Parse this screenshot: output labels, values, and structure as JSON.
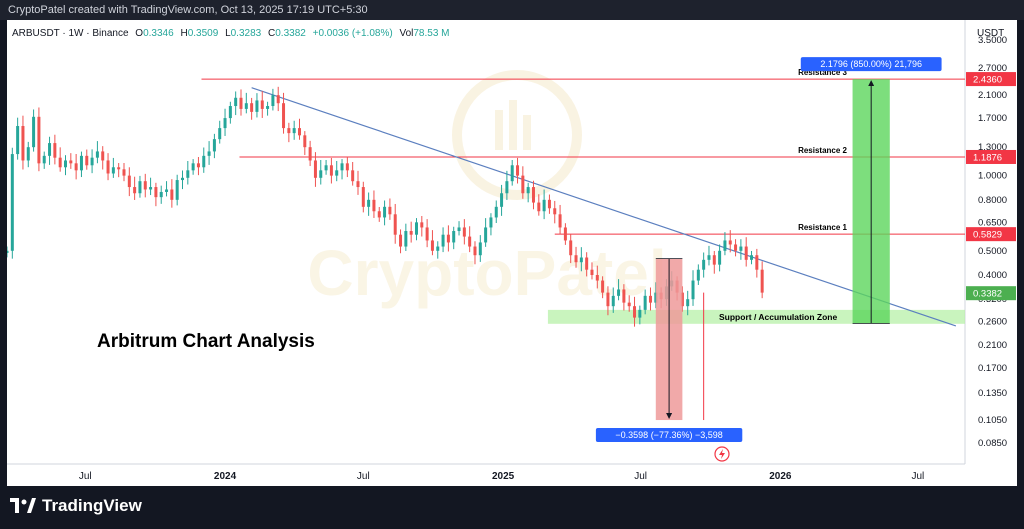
{
  "header": {
    "credit": "CryptoPatel created with TradingView.com, Oct 13, 2025 17:19 UTC+5:30"
  },
  "legend": {
    "symbol": "ARBUSDT · 1W · Binance",
    "o_label": "O",
    "o_value": "0.3346",
    "h_label": "H",
    "h_value": "0.3509",
    "l_label": "L",
    "l_value": "0.3283",
    "c_label": "C",
    "c_value": "0.3382",
    "change": "+0.0036 (+1.08%)",
    "vol_label": "Vol",
    "vol_value": "78.53 M"
  },
  "footer": {
    "brand": "TradingView"
  },
  "colors": {
    "up": "#26a69a",
    "down": "#ef5350",
    "resistance": "#f23645",
    "trendline": "#5b7fbf",
    "zone": "#b7f0a8"
  },
  "chart_data": {
    "type": "candlestick",
    "title": "Arbitrum Chart Analysis",
    "currency": "USDT",
    "yscale": "log",
    "ylim": [
      0.07,
      4.2
    ],
    "x_range": [
      "2023-03-20",
      "2026-09-01"
    ],
    "y_ticks": [
      3.5,
      2.7,
      2.1,
      1.7,
      1.3,
      1.0,
      0.8,
      0.65,
      0.5,
      0.4,
      0.32,
      0.26,
      0.21,
      0.17,
      0.135,
      0.105,
      0.085
    ],
    "y_tick_labels": [
      "3.5000",
      "2.7000",
      "2.1000",
      "1.7000",
      "1.3000",
      "1.0000",
      "0.8000",
      "0.6500",
      "0.5000",
      "0.4000",
      "0.3200",
      "0.2600",
      "0.2100",
      "0.1700",
      "0.1350",
      "0.1050",
      "0.0850"
    ],
    "x_ticks": [
      {
        "date": "2023-07-01",
        "label": "Jul",
        "bold": false
      },
      {
        "date": "2024-01-01",
        "label": "2024",
        "bold": true
      },
      {
        "date": "2024-07-01",
        "label": "Jul",
        "bold": false
      },
      {
        "date": "2025-01-01",
        "label": "2025",
        "bold": true
      },
      {
        "date": "2025-07-01",
        "label": "Jul",
        "bold": false
      },
      {
        "date": "2026-01-01",
        "label": "2026",
        "bold": true
      },
      {
        "date": "2026-07-01",
        "label": "Jul",
        "bold": false
      }
    ],
    "price_levels": [
      {
        "name": "Resistance 3",
        "value": 2.436,
        "label": "2.4360",
        "color": "#f23645"
      },
      {
        "name": "Resistance 2",
        "value": 1.1876,
        "label": "1.1876",
        "color": "#f23645"
      },
      {
        "name": "Resistance 1",
        "value": 0.5829,
        "label": "0.5829",
        "color": "#f23645"
      }
    ],
    "current_price": {
      "value": 0.3382,
      "label": "0.3382",
      "color": "#4caf50"
    },
    "zone": {
      "name": "Support / Accumulation Zone",
      "low": 0.255,
      "high": 0.29,
      "start": "2025-03-01",
      "end": "2026-09-01"
    },
    "trendline": {
      "start": {
        "date": "2024-02-05",
        "value": 2.25
      },
      "end": {
        "date": "2026-08-20",
        "value": 0.25
      }
    },
    "measures": [
      {
        "label": "2.1796 (850.00%) 21,796",
        "from": 0.256,
        "to": 2.436,
        "start": "2026-04-06",
        "end": "2026-05-25",
        "color": "#5cd65c",
        "direction": "up"
      },
      {
        "label": "−0.3598 (−77.36%) −3,598",
        "from": 0.465,
        "to": 0.105,
        "start": "2025-07-21",
        "end": "2025-08-25",
        "color": "#ef9a9a",
        "direction": "down"
      }
    ],
    "candles_weekly_from": "2023-03-20",
    "closes": [
      0.5,
      1.22,
      1.58,
      1.15,
      1.3,
      1.72,
      1.12,
      1.2,
      1.35,
      1.18,
      1.08,
      1.15,
      1.12,
      1.05,
      1.2,
      1.1,
      1.18,
      1.25,
      1.15,
      1.02,
      1.08,
      1.06,
      1.0,
      0.9,
      0.85,
      0.95,
      0.88,
      0.9,
      0.82,
      0.86,
      0.88,
      0.8,
      0.96,
      0.98,
      1.05,
      1.12,
      1.08,
      1.2,
      1.25,
      1.4,
      1.55,
      1.7,
      1.9,
      2.05,
      1.85,
      1.95,
      1.8,
      2.0,
      1.85,
      1.9,
      2.1,
      1.95,
      1.55,
      1.48,
      1.55,
      1.45,
      1.3,
      1.15,
      0.98,
      1.05,
      1.1,
      1.0,
      1.05,
      1.12,
      1.05,
      0.95,
      0.9,
      0.75,
      0.8,
      0.72,
      0.68,
      0.75,
      0.7,
      0.58,
      0.52,
      0.6,
      0.58,
      0.65,
      0.62,
      0.55,
      0.5,
      0.52,
      0.58,
      0.54,
      0.6,
      0.62,
      0.57,
      0.52,
      0.48,
      0.54,
      0.62,
      0.68,
      0.75,
      0.85,
      0.95,
      1.1,
      1.0,
      0.85,
      0.9,
      0.78,
      0.72,
      0.8,
      0.74,
      0.7,
      0.62,
      0.55,
      0.48,
      0.45,
      0.47,
      0.42,
      0.4,
      0.38,
      0.34,
      0.3,
      0.33,
      0.35,
      0.31,
      0.3,
      0.27,
      0.29,
      0.33,
      0.31,
      0.34,
      0.32,
      0.36,
      0.38,
      0.34,
      0.3,
      0.32,
      0.38,
      0.42,
      0.46,
      0.48,
      0.44,
      0.5,
      0.55,
      0.53,
      0.5,
      0.52,
      0.46,
      0.48,
      0.42,
      0.34
    ]
  }
}
